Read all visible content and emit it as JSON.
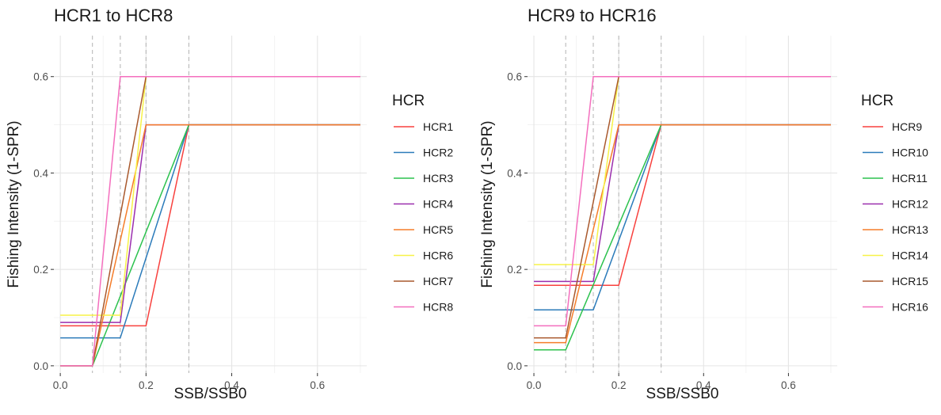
{
  "chart_data": [
    {
      "type": "line",
      "title": "HCR1 to HCR8",
      "xlabel": "SSB/SSB0",
      "ylabel": "Fishing Intensity (1-SPR)",
      "xlim": [
        -0.015,
        0.715
      ],
      "ylim": [
        -0.015,
        0.685
      ],
      "xticks": [
        0.0,
        0.2,
        0.4,
        0.6
      ],
      "yticks": [
        0.0,
        0.2,
        0.4,
        0.6
      ],
      "xtick_labels": [
        "0.0",
        "0.2",
        "0.4",
        "0.6"
      ],
      "ytick_labels": [
        "0.0",
        "0.2",
        "0.4",
        "0.6"
      ],
      "ref_lines_x": [
        0.075,
        0.14,
        0.2,
        0.3
      ],
      "grid": true,
      "legend_title": "HCR",
      "legend_position": "right",
      "series": [
        {
          "name": "HCR1",
          "color": "#f8413e",
          "x": [
            0,
            0.2,
            0.3,
            0.7
          ],
          "y": [
            0.083,
            0.083,
            0.5,
            0.5
          ]
        },
        {
          "name": "HCR2",
          "color": "#2b7bba",
          "x": [
            0,
            0.14,
            0.3,
            0.7
          ],
          "y": [
            0.058,
            0.058,
            0.5,
            0.5
          ]
        },
        {
          "name": "HCR3",
          "color": "#2cc24e",
          "x": [
            0,
            0.075,
            0.3,
            0.7
          ],
          "y": [
            0,
            0,
            0.5,
            0.5
          ]
        },
        {
          "name": "HCR4",
          "color": "#9b2fae",
          "x": [
            0,
            0.14,
            0.2,
            0.7
          ],
          "y": [
            0.09,
            0.09,
            0.5,
            0.5
          ]
        },
        {
          "name": "HCR5",
          "color": "#f57d2a",
          "x": [
            0,
            0.075,
            0.2,
            0.7
          ],
          "y": [
            0,
            0,
            0.5,
            0.5
          ]
        },
        {
          "name": "HCR6",
          "color": "#f7f247",
          "x": [
            0,
            0.14,
            0.2,
            0.7
          ],
          "y": [
            0.105,
            0.105,
            0.6,
            0.6
          ]
        },
        {
          "name": "HCR7",
          "color": "#a9592d",
          "x": [
            0,
            0.075,
            0.2,
            0.7
          ],
          "y": [
            0,
            0,
            0.6,
            0.6
          ]
        },
        {
          "name": "HCR8",
          "color": "#f46fbe",
          "x": [
            0,
            0.075,
            0.14,
            0.7
          ],
          "y": [
            0,
            0,
            0.6,
            0.6
          ]
        }
      ]
    },
    {
      "type": "line",
      "title": "HCR9 to HCR16",
      "xlabel": "SSB/SSB0",
      "ylabel": "Fishing Intensity (1-SPR)",
      "xlim": [
        -0.015,
        0.715
      ],
      "ylim": [
        -0.015,
        0.685
      ],
      "xticks": [
        0.0,
        0.2,
        0.4,
        0.6
      ],
      "yticks": [
        0.0,
        0.2,
        0.4,
        0.6
      ],
      "xtick_labels": [
        "0.0",
        "0.2",
        "0.4",
        "0.6"
      ],
      "ytick_labels": [
        "0.0",
        "0.2",
        "0.4",
        "0.6"
      ],
      "ref_lines_x": [
        0.075,
        0.14,
        0.2,
        0.3
      ],
      "grid": true,
      "legend_title": "HCR",
      "legend_position": "right",
      "series": [
        {
          "name": "HCR9",
          "color": "#f8413e",
          "x": [
            0,
            0.2,
            0.3,
            0.7
          ],
          "y": [
            0.167,
            0.167,
            0.5,
            0.5
          ]
        },
        {
          "name": "HCR10",
          "color": "#2b7bba",
          "x": [
            0,
            0.14,
            0.3,
            0.7
          ],
          "y": [
            0.116,
            0.116,
            0.5,
            0.5
          ]
        },
        {
          "name": "HCR11",
          "color": "#2cc24e",
          "x": [
            0,
            0.075,
            0.3,
            0.7
          ],
          "y": [
            0.033,
            0.033,
            0.5,
            0.5
          ]
        },
        {
          "name": "HCR12",
          "color": "#9b2fae",
          "x": [
            0,
            0.14,
            0.2,
            0.7
          ],
          "y": [
            0.175,
            0.175,
            0.5,
            0.5
          ]
        },
        {
          "name": "HCR13",
          "color": "#f57d2a",
          "x": [
            0,
            0.075,
            0.2,
            0.7
          ],
          "y": [
            0.048,
            0.048,
            0.5,
            0.5
          ]
        },
        {
          "name": "HCR14",
          "color": "#f7f247",
          "x": [
            0,
            0.14,
            0.2,
            0.7
          ],
          "y": [
            0.21,
            0.21,
            0.6,
            0.6
          ]
        },
        {
          "name": "HCR15",
          "color": "#a9592d",
          "x": [
            0,
            0.075,
            0.2,
            0.7
          ],
          "y": [
            0.058,
            0.058,
            0.6,
            0.6
          ]
        },
        {
          "name": "HCR16",
          "color": "#f46fbe",
          "x": [
            0,
            0.075,
            0.14,
            0.7
          ],
          "y": [
            0.083,
            0.083,
            0.6,
            0.6
          ]
        }
      ]
    }
  ]
}
